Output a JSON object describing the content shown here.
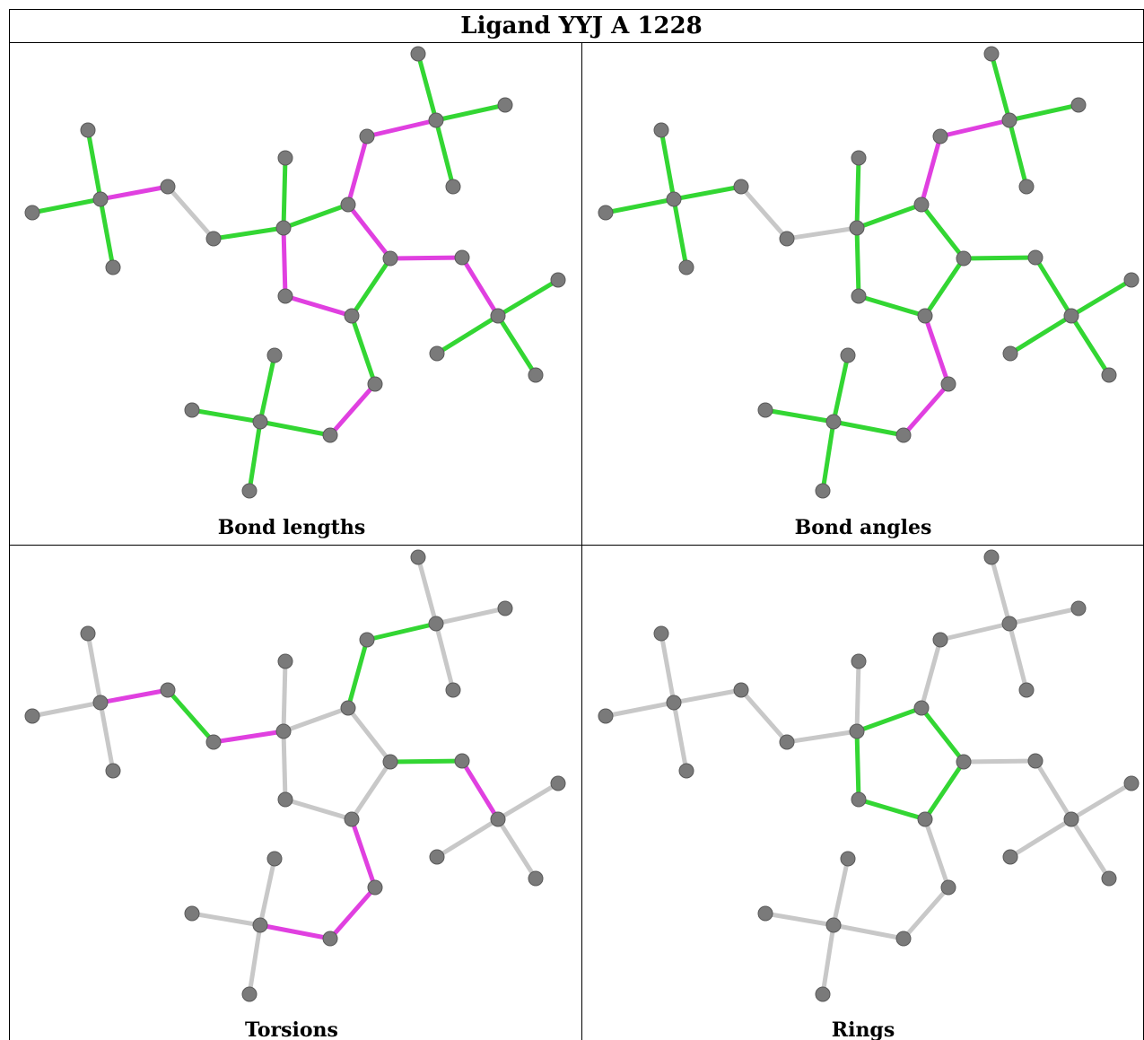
{
  "table": {
    "title": "Ligand YYJ A 1228",
    "panels": [
      {
        "caption": "Bond lengths"
      },
      {
        "caption": "Bond angles"
      },
      {
        "caption": "Torsions"
      },
      {
        "caption": "Rings"
      }
    ]
  }
}
